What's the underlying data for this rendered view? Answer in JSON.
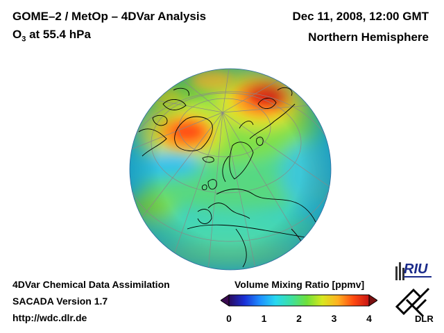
{
  "header": {
    "title": "GOME–2 / MetOp – 4DVar Analysis",
    "species_main": "O",
    "species_sub": "3",
    "species_rest": " at 55.4 hPa",
    "date": "Dec 11, 2008, 12:00 GMT",
    "region": "Northern Hemisphere"
  },
  "footer": {
    "line1": "4DVar Chemical Data Assimilation",
    "line2": "SACADA Version 1.7",
    "line3": "http://wdc.dlr.de"
  },
  "colorbar": {
    "title": "Volume Mixing Ratio [ppmv]",
    "min": 0,
    "max": 4,
    "ticks": [
      "0",
      "1",
      "2",
      "3",
      "4"
    ],
    "colors": [
      "#2a0a5e",
      "#1a2fd6",
      "#1e8fff",
      "#27d8f0",
      "#3de0a0",
      "#6ee03a",
      "#d8e820",
      "#ffb020",
      "#ff4a10",
      "#c81414"
    ]
  },
  "logos": {
    "riu": "RIU",
    "dlr": "DLR"
  }
}
